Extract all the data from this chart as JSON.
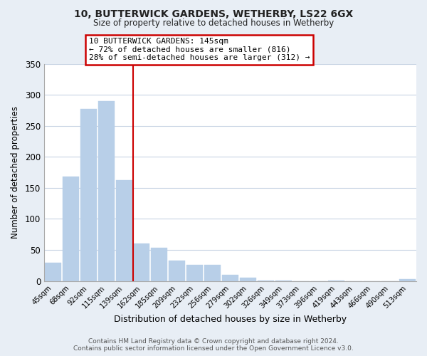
{
  "title": "10, BUTTERWICK GARDENS, WETHERBY, LS22 6GX",
  "subtitle": "Size of property relative to detached houses in Wetherby",
  "xlabel": "Distribution of detached houses by size in Wetherby",
  "ylabel": "Number of detached properties",
  "bar_labels": [
    "45sqm",
    "68sqm",
    "92sqm",
    "115sqm",
    "139sqm",
    "162sqm",
    "185sqm",
    "209sqm",
    "232sqm",
    "256sqm",
    "279sqm",
    "302sqm",
    "326sqm",
    "349sqm",
    "373sqm",
    "396sqm",
    "419sqm",
    "443sqm",
    "466sqm",
    "490sqm",
    "513sqm"
  ],
  "bar_values": [
    29,
    168,
    277,
    290,
    162,
    60,
    54,
    33,
    26,
    26,
    10,
    5,
    1,
    1,
    0,
    0,
    1,
    0,
    0,
    0,
    3
  ],
  "bar_color": "#b8cfe8",
  "highlight_line_index": 4,
  "highlight_line_color": "#cc0000",
  "ylim": [
    0,
    350
  ],
  "yticks": [
    0,
    50,
    100,
    150,
    200,
    250,
    300,
    350
  ],
  "annotation_title": "10 BUTTERWICK GARDENS: 145sqm",
  "annotation_line1": "← 72% of detached houses are smaller (816)",
  "annotation_line2": "28% of semi-detached houses are larger (312) →",
  "annotation_box_color": "#ffffff",
  "annotation_box_edge_color": "#cc0000",
  "footer_line1": "Contains HM Land Registry data © Crown copyright and database right 2024.",
  "footer_line2": "Contains public sector information licensed under the Open Government Licence v3.0.",
  "background_color": "#e8eef5",
  "plot_background_color": "#ffffff",
  "grid_color": "#c8d4e4"
}
